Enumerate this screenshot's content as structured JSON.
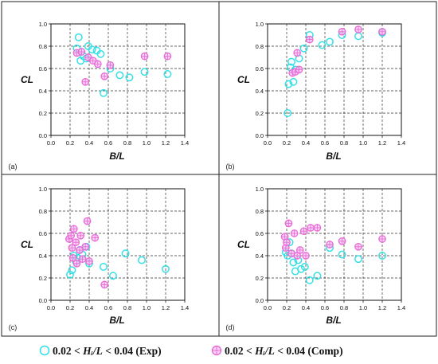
{
  "chart_data": [
    {
      "type": "scatter",
      "panel_label": "(a)",
      "xlabel": "B/L",
      "ylabel": "CL",
      "xlim": [
        0.0,
        1.4
      ],
      "ylim": [
        0.0,
        1.0
      ],
      "xticks": [
        "0.0",
        "0.2",
        "0.4",
        "0.6",
        "0.8",
        "1.0",
        "1.2",
        "1.4"
      ],
      "yticks": [
        "0.0",
        "0.2",
        "0.4",
        "0.6",
        "0.8",
        "1.0"
      ],
      "grid": true,
      "series": [
        {
          "name": "Exp",
          "marker": "circle",
          "color": "#36e0e6",
          "points": [
            [
              0.27,
              0.78
            ],
            [
              0.29,
              0.88
            ],
            [
              0.31,
              0.67
            ],
            [
              0.34,
              0.71
            ],
            [
              0.37,
              0.69
            ],
            [
              0.39,
              0.8
            ],
            [
              0.43,
              0.77
            ],
            [
              0.48,
              0.76
            ],
            [
              0.52,
              0.73
            ],
            [
              0.55,
              0.38
            ],
            [
              0.62,
              0.6
            ],
            [
              0.72,
              0.54
            ],
            [
              0.82,
              0.52
            ],
            [
              0.98,
              0.57
            ],
            [
              1.22,
              0.55
            ]
          ]
        },
        {
          "name": "Comp",
          "marker": "circle-cross",
          "color": "#e86ad8",
          "points": [
            [
              0.27,
              0.74
            ],
            [
              0.32,
              0.75
            ],
            [
              0.36,
              0.48
            ],
            [
              0.39,
              0.7
            ],
            [
              0.44,
              0.67
            ],
            [
              0.49,
              0.64
            ],
            [
              0.56,
              0.53
            ],
            [
              0.62,
              0.63
            ],
            [
              0.98,
              0.71
            ],
            [
              1.22,
              0.71
            ]
          ]
        }
      ]
    },
    {
      "type": "scatter",
      "panel_label": "(b)",
      "xlabel": "B/L",
      "ylabel": "CL",
      "xlim": [
        0.0,
        1.4
      ],
      "ylim": [
        0.0,
        1.0
      ],
      "xticks": [
        "0.0",
        "0.2",
        "0.4",
        "0.6",
        "0.8",
        "1.0",
        "1.2",
        "1.4"
      ],
      "yticks": [
        "0.0",
        "0.2",
        "0.4",
        "0.6",
        "0.8",
        "1.0"
      ],
      "grid": true,
      "series": [
        {
          "name": "Exp",
          "marker": "circle",
          "color": "#36e0e6",
          "points": [
            [
              0.21,
              0.2
            ],
            [
              0.22,
              0.46
            ],
            [
              0.24,
              0.61
            ],
            [
              0.25,
              0.66
            ],
            [
              0.27,
              0.48
            ],
            [
              0.29,
              0.59
            ],
            [
              0.33,
              0.69
            ],
            [
              0.38,
              0.78
            ],
            [
              0.44,
              0.9
            ],
            [
              0.57,
              0.81
            ],
            [
              0.65,
              0.84
            ],
            [
              0.78,
              0.9
            ],
            [
              0.95,
              0.89
            ],
            [
              1.2,
              0.92
            ]
          ]
        },
        {
          "name": "Comp",
          "marker": "circle-cross",
          "color": "#e86ad8",
          "points": [
            [
              0.26,
              0.56
            ],
            [
              0.29,
              0.57
            ],
            [
              0.31,
              0.74
            ],
            [
              0.33,
              0.59
            ],
            [
              0.44,
              0.86
            ],
            [
              0.78,
              0.93
            ],
            [
              0.95,
              0.95
            ],
            [
              1.2,
              0.93
            ]
          ]
        }
      ]
    },
    {
      "type": "scatter",
      "panel_label": "(c)",
      "xlabel": "B/L",
      "ylabel": "CL",
      "xlim": [
        0.0,
        1.4
      ],
      "ylim": [
        0.0,
        1.0
      ],
      "xticks": [
        "0.0",
        "0.2",
        "0.4",
        "0.6",
        "0.8",
        "1.0",
        "1.2",
        "1.4"
      ],
      "yticks": [
        "0.0",
        "0.2",
        "0.4",
        "0.6",
        "0.8",
        "1.0"
      ],
      "grid": true,
      "series": [
        {
          "name": "Exp",
          "marker": "circle",
          "color": "#36e0e6",
          "points": [
            [
              0.2,
              0.23
            ],
            [
              0.22,
              0.27
            ],
            [
              0.24,
              0.4
            ],
            [
              0.26,
              0.35
            ],
            [
              0.28,
              0.38
            ],
            [
              0.3,
              0.45
            ],
            [
              0.33,
              0.41
            ],
            [
              0.37,
              0.48
            ],
            [
              0.4,
              0.33
            ],
            [
              0.55,
              0.3
            ],
            [
              0.65,
              0.22
            ],
            [
              0.78,
              0.42
            ],
            [
              0.95,
              0.36
            ],
            [
              1.2,
              0.28
            ]
          ]
        },
        {
          "name": "Comp",
          "marker": "circle-cross",
          "color": "#e86ad8",
          "points": [
            [
              0.19,
              0.55
            ],
            [
              0.21,
              0.58
            ],
            [
              0.22,
              0.47
            ],
            [
              0.23,
              0.38
            ],
            [
              0.24,
              0.64
            ],
            [
              0.26,
              0.52
            ],
            [
              0.27,
              0.33
            ],
            [
              0.3,
              0.45
            ],
            [
              0.31,
              0.58
            ],
            [
              0.33,
              0.37
            ],
            [
              0.36,
              0.48
            ],
            [
              0.38,
              0.71
            ],
            [
              0.4,
              0.35
            ],
            [
              0.46,
              0.56
            ],
            [
              0.56,
              0.14
            ]
          ]
        }
      ]
    },
    {
      "type": "scatter",
      "panel_label": "(d)",
      "xlabel": "B/L",
      "ylabel": "CL",
      "xlim": [
        0.0,
        1.4
      ],
      "ylim": [
        0.0,
        1.0
      ],
      "xticks": [
        "0.0",
        "0.2",
        "0.4",
        "0.6",
        "0.8",
        "1.0",
        "1.2",
        "1.4"
      ],
      "yticks": [
        "0.0",
        "0.2",
        "0.4",
        "0.6",
        "0.8",
        "1.0"
      ],
      "grid": true,
      "series": [
        {
          "name": "Exp",
          "marker": "circle",
          "color": "#36e0e6",
          "points": [
            [
              0.19,
              0.43
            ],
            [
              0.21,
              0.4
            ],
            [
              0.23,
              0.52
            ],
            [
              0.25,
              0.42
            ],
            [
              0.27,
              0.34
            ],
            [
              0.29,
              0.26
            ],
            [
              0.32,
              0.36
            ],
            [
              0.35,
              0.28
            ],
            [
              0.39,
              0.3
            ],
            [
              0.44,
              0.18
            ],
            [
              0.52,
              0.22
            ],
            [
              0.65,
              0.47
            ],
            [
              0.78,
              0.41
            ],
            [
              0.95,
              0.37
            ],
            [
              1.2,
              0.4
            ]
          ]
        },
        {
          "name": "Comp",
          "marker": "circle-cross",
          "color": "#e86ad8",
          "points": [
            [
              0.18,
              0.57
            ],
            [
              0.19,
              0.47
            ],
            [
              0.2,
              0.52
            ],
            [
              0.22,
              0.69
            ],
            [
              0.25,
              0.42
            ],
            [
              0.28,
              0.6
            ],
            [
              0.31,
              0.4
            ],
            [
              0.34,
              0.45
            ],
            [
              0.38,
              0.62
            ],
            [
              0.4,
              0.4
            ],
            [
              0.45,
              0.65
            ],
            [
              0.52,
              0.65
            ],
            [
              0.65,
              0.5
            ],
            [
              0.78,
              0.53
            ],
            [
              0.95,
              0.48
            ],
            [
              1.2,
              0.55
            ]
          ]
        }
      ]
    }
  ],
  "legend": {
    "items": [
      {
        "marker": "circle",
        "color": "#36e0e6",
        "prefix": "0.02 < ",
        "var": "Hᵢ/L",
        "suffix": " < 0.04 (Exp)"
      },
      {
        "marker": "circle-cross",
        "color": "#e86ad8",
        "prefix": "0.02 < ",
        "var": "Hᵢ/L",
        "suffix": " < 0.04 (Comp)"
      }
    ]
  }
}
